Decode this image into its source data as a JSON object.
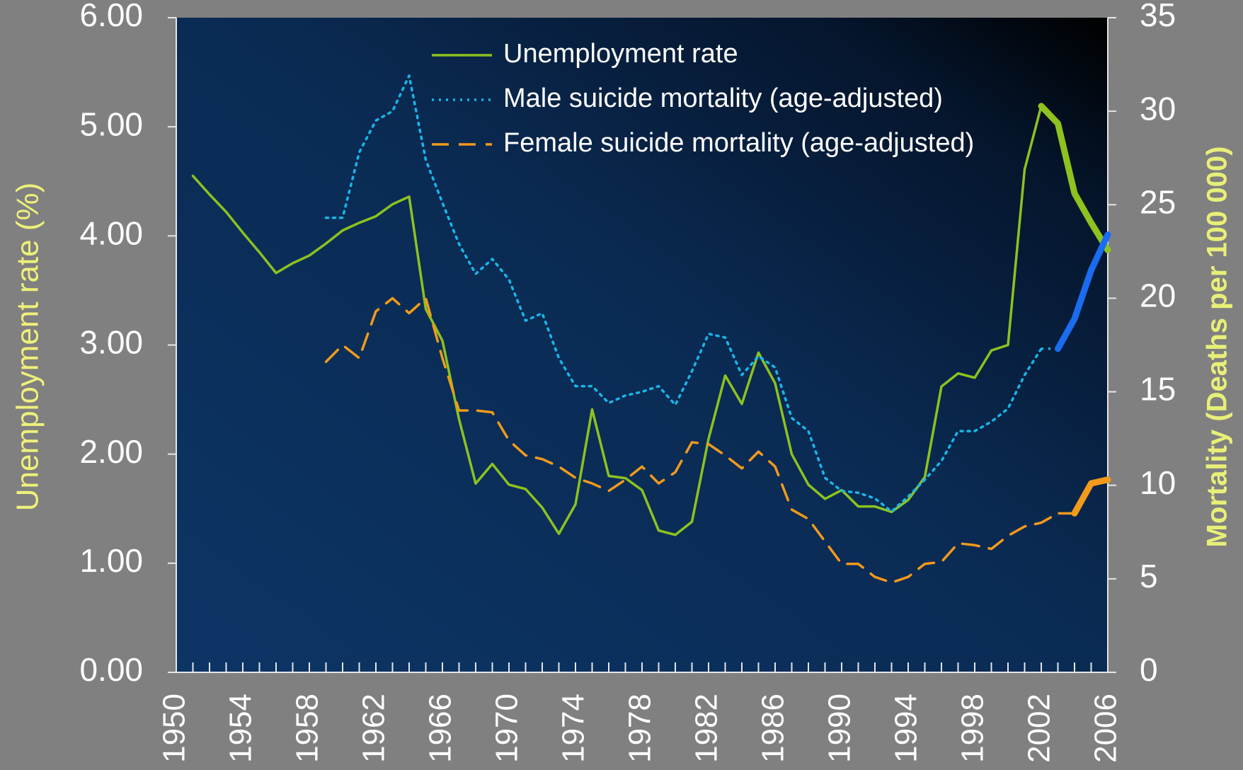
{
  "chart_data": {
    "type": "line",
    "x": [
      1951,
      1952,
      1953,
      1954,
      1955,
      1956,
      1957,
      1958,
      1959,
      1960,
      1961,
      1962,
      1963,
      1964,
      1965,
      1966,
      1967,
      1968,
      1969,
      1970,
      1971,
      1972,
      1973,
      1974,
      1975,
      1976,
      1977,
      1978,
      1979,
      1980,
      1981,
      1982,
      1983,
      1984,
      1985,
      1986,
      1987,
      1988,
      1989,
      1990,
      1991,
      1992,
      1993,
      1994,
      1995,
      1996,
      1997,
      1998,
      1999,
      2000,
      2001,
      2002,
      2003,
      2004,
      2005,
      2006
    ],
    "series": [
      {
        "name": "Unemployment rate",
        "color": "#8dc21f",
        "style": "solid",
        "axis": "y",
        "highlight": {
          "from": 2002,
          "color": "#8dc21f"
        },
        "values": [
          4.55,
          4.38,
          4.22,
          4.03,
          3.85,
          3.66,
          3.75,
          3.82,
          3.93,
          4.05,
          4.12,
          4.18,
          4.29,
          4.36,
          3.33,
          3.04,
          2.32,
          1.73,
          1.91,
          1.72,
          1.68,
          1.51,
          1.27,
          1.54,
          2.41,
          1.8,
          1.78,
          1.67,
          1.3,
          1.26,
          1.38,
          2.14,
          2.72,
          2.46,
          2.93,
          2.65,
          2.0,
          1.72,
          1.59,
          1.67,
          1.52,
          1.52,
          1.47,
          1.58,
          1.79,
          2.62,
          2.74,
          2.7,
          2.95,
          3.0,
          4.61,
          5.19,
          5.03,
          4.39,
          4.12,
          3.87
        ]
      },
      {
        "name": "Male suicide mortality (age-adjusted)",
        "color": "#19b6e8",
        "style": "dotted",
        "axis": "y2",
        "highlight": {
          "from": 2003,
          "color": "#1a6cf0"
        },
        "values": [
          null,
          null,
          null,
          null,
          null,
          null,
          null,
          null,
          24.3,
          24.3,
          27.8,
          29.5,
          30.0,
          31.9,
          27.4,
          25.1,
          22.9,
          21.3,
          22.1,
          21.0,
          18.8,
          19.2,
          16.8,
          15.3,
          15.3,
          14.4,
          14.8,
          15.0,
          15.3,
          14.3,
          16.1,
          18.1,
          17.9,
          15.9,
          16.9,
          16.3,
          13.6,
          12.9,
          10.4,
          9.7,
          9.6,
          9.3,
          8.6,
          9.4,
          10.3,
          11.3,
          12.9,
          12.9,
          13.4,
          14.1,
          15.9,
          17.3,
          17.3,
          18.9,
          21.5,
          23.4
        ]
      },
      {
        "name": "Female suicide mortality (age-adjusted)",
        "color": "#f29a1b",
        "style": "dashed",
        "axis": "y2",
        "highlight": {
          "from": 2004,
          "color": "#f29a1b"
        },
        "values": [
          null,
          null,
          null,
          null,
          null,
          null,
          null,
          null,
          16.6,
          17.5,
          16.8,
          19.3,
          20.0,
          19.2,
          20.0,
          16.8,
          14.0,
          14.0,
          13.9,
          12.4,
          11.6,
          11.4,
          11.0,
          10.4,
          10.1,
          9.7,
          10.3,
          11.0,
          10.1,
          10.7,
          12.3,
          12.2,
          11.6,
          10.9,
          11.8,
          11.0,
          8.7,
          8.2,
          7.0,
          5.8,
          5.8,
          5.1,
          4.8,
          5.1,
          5.8,
          5.9,
          6.9,
          6.8,
          6.6,
          7.3,
          7.8,
          8.0,
          8.5,
          8.5,
          10.1,
          10.3
        ]
      }
    ],
    "y_label": "Unemployment rate (%)",
    "y2_label": "Mortality (Deaths per 100 000)",
    "xlim": [
      1950,
      2006
    ],
    "xticks": [
      1950,
      1954,
      1958,
      1962,
      1966,
      1970,
      1974,
      1978,
      1982,
      1986,
      1990,
      1994,
      1998,
      2002,
      2006
    ],
    "x_minor_tick_step": 1,
    "ylim": [
      0,
      6
    ],
    "yticks": [
      {
        "value": 0,
        "label": "0.00"
      },
      {
        "value": 1,
        "label": "1.00"
      },
      {
        "value": 2,
        "label": "2.00"
      },
      {
        "value": 3,
        "label": "3.00"
      },
      {
        "value": 4,
        "label": "4.00"
      },
      {
        "value": 5,
        "label": "5.00"
      },
      {
        "value": 6,
        "label": "6.00"
      }
    ],
    "y2lim": [
      0,
      35
    ],
    "y2ticks": [
      0,
      5,
      10,
      15,
      20,
      25,
      30,
      35
    ],
    "legend": "top"
  }
}
